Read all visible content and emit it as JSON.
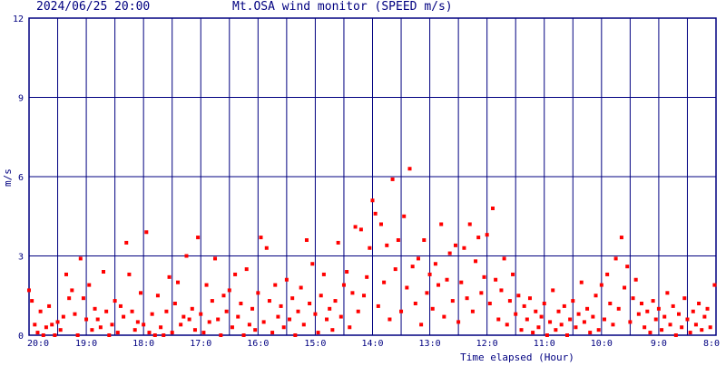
{
  "header": {
    "datetime": "2024/06/25 20:00",
    "title": "Mt.OSA wind monitor (SPEED m/s)"
  },
  "chart_data": {
    "type": "scatter",
    "title": "Mt.OSA wind monitor (SPEED m/s)",
    "xlabel": "Time elapsed (Hour)",
    "ylabel": "m/s",
    "ylim": [
      0,
      12
    ],
    "yticks": [
      "0",
      "3",
      "6",
      "9",
      "12"
    ],
    "xlim": [
      0,
      24
    ],
    "xticks": [
      "20:0",
      "19:0",
      "18:0",
      "17:0",
      "16:0",
      "15:0",
      "14:0",
      "13:0",
      "12:0",
      "11:0",
      "10:0",
      "9:0",
      "8:0"
    ],
    "grid": true,
    "colors": {
      "points": "#ff0000",
      "grid": "#000080",
      "frame": "#000080"
    },
    "series": [
      {
        "values": [
          [
            0.0,
            1.7
          ],
          [
            0.1,
            1.3
          ],
          [
            0.2,
            0.4
          ],
          [
            0.3,
            0.1
          ],
          [
            0.4,
            0.9
          ],
          [
            0.5,
            0.0
          ],
          [
            0.6,
            0.3
          ],
          [
            0.7,
            1.1
          ],
          [
            0.8,
            0.4
          ],
          [
            0.9,
            0.0
          ],
          [
            1.0,
            0.5
          ],
          [
            1.1,
            0.2
          ],
          [
            1.2,
            0.7
          ],
          [
            1.3,
            2.3
          ],
          [
            1.4,
            1.4
          ],
          [
            1.5,
            1.7
          ],
          [
            1.6,
            0.8
          ],
          [
            1.7,
            0.0
          ],
          [
            1.8,
            2.9
          ],
          [
            1.9,
            1.4
          ],
          [
            2.0,
            0.6
          ],
          [
            2.1,
            1.9
          ],
          [
            2.2,
            0.2
          ],
          [
            2.3,
            1.0
          ],
          [
            2.4,
            0.6
          ],
          [
            2.5,
            0.3
          ],
          [
            2.6,
            2.4
          ],
          [
            2.7,
            0.9
          ],
          [
            2.8,
            0.0
          ],
          [
            2.9,
            0.4
          ],
          [
            3.0,
            1.3
          ],
          [
            3.1,
            0.1
          ],
          [
            3.2,
            1.1
          ],
          [
            3.3,
            0.7
          ],
          [
            3.4,
            3.5
          ],
          [
            3.5,
            2.3
          ],
          [
            3.6,
            0.9
          ],
          [
            3.7,
            0.2
          ],
          [
            3.8,
            0.5
          ],
          [
            3.9,
            1.6
          ],
          [
            4.0,
            0.4
          ],
          [
            4.1,
            3.9
          ],
          [
            4.2,
            0.1
          ],
          [
            4.3,
            0.8
          ],
          [
            4.4,
            0.0
          ],
          [
            4.5,
            1.5
          ],
          [
            4.6,
            0.3
          ],
          [
            4.7,
            0.0
          ],
          [
            4.8,
            0.9
          ],
          [
            4.9,
            2.2
          ],
          [
            5.0,
            0.1
          ],
          [
            5.1,
            1.2
          ],
          [
            5.2,
            2.0
          ],
          [
            5.3,
            0.4
          ],
          [
            5.4,
            0.7
          ],
          [
            5.5,
            3.0
          ],
          [
            5.6,
            0.6
          ],
          [
            5.7,
            1.0
          ],
          [
            5.8,
            0.2
          ],
          [
            5.9,
            3.7
          ],
          [
            6.0,
            0.8
          ],
          [
            6.1,
            0.1
          ],
          [
            6.2,
            1.9
          ],
          [
            6.3,
            0.5
          ],
          [
            6.4,
            1.3
          ],
          [
            6.5,
            2.9
          ],
          [
            6.6,
            0.6
          ],
          [
            6.7,
            0.0
          ],
          [
            6.8,
            1.5
          ],
          [
            6.9,
            0.9
          ],
          [
            7.0,
            1.7
          ],
          [
            7.1,
            0.3
          ],
          [
            7.2,
            2.3
          ],
          [
            7.3,
            0.7
          ],
          [
            7.4,
            1.2
          ],
          [
            7.5,
            0.0
          ],
          [
            7.6,
            2.5
          ],
          [
            7.7,
            0.4
          ],
          [
            7.8,
            1.0
          ],
          [
            7.9,
            0.2
          ],
          [
            8.0,
            1.6
          ],
          [
            8.1,
            3.7
          ],
          [
            8.2,
            0.5
          ],
          [
            8.3,
            3.3
          ],
          [
            8.4,
            1.3
          ],
          [
            8.5,
            0.1
          ],
          [
            8.6,
            1.9
          ],
          [
            8.7,
            0.7
          ],
          [
            8.8,
            1.1
          ],
          [
            8.9,
            0.3
          ],
          [
            9.0,
            2.1
          ],
          [
            9.1,
            0.6
          ],
          [
            9.2,
            1.4
          ],
          [
            9.3,
            0.0
          ],
          [
            9.4,
            0.9
          ],
          [
            9.5,
            1.8
          ],
          [
            9.6,
            0.4
          ],
          [
            9.7,
            3.6
          ],
          [
            9.8,
            1.2
          ],
          [
            9.9,
            2.7
          ],
          [
            10.0,
            0.8
          ],
          [
            10.1,
            0.1
          ],
          [
            10.2,
            1.5
          ],
          [
            10.3,
            2.3
          ],
          [
            10.4,
            0.6
          ],
          [
            10.5,
            1.0
          ],
          [
            10.6,
            0.2
          ],
          [
            10.7,
            1.3
          ],
          [
            10.8,
            3.5
          ],
          [
            10.9,
            0.7
          ],
          [
            11.0,
            1.9
          ],
          [
            11.1,
            2.4
          ],
          [
            11.2,
            0.3
          ],
          [
            11.3,
            1.6
          ],
          [
            11.4,
            4.1
          ],
          [
            11.5,
            0.9
          ],
          [
            11.6,
            4.0
          ],
          [
            11.7,
            1.5
          ],
          [
            11.8,
            2.2
          ],
          [
            11.9,
            3.3
          ],
          [
            12.0,
            5.1
          ],
          [
            12.1,
            4.6
          ],
          [
            12.2,
            1.1
          ],
          [
            12.3,
            4.2
          ],
          [
            12.4,
            2.0
          ],
          [
            12.5,
            3.4
          ],
          [
            12.6,
            0.6
          ],
          [
            12.7,
            5.9
          ],
          [
            12.8,
            2.5
          ],
          [
            12.9,
            3.6
          ],
          [
            13.0,
            0.9
          ],
          [
            13.1,
            4.5
          ],
          [
            13.2,
            1.8
          ],
          [
            13.3,
            6.3
          ],
          [
            13.4,
            2.6
          ],
          [
            13.5,
            1.2
          ],
          [
            13.6,
            2.9
          ],
          [
            13.7,
            0.4
          ],
          [
            13.8,
            3.6
          ],
          [
            13.9,
            1.6
          ],
          [
            14.0,
            2.3
          ],
          [
            14.1,
            1.0
          ],
          [
            14.2,
            2.7
          ],
          [
            14.3,
            1.9
          ],
          [
            14.4,
            4.2
          ],
          [
            14.5,
            0.7
          ],
          [
            14.6,
            2.1
          ],
          [
            14.7,
            3.1
          ],
          [
            14.8,
            1.3
          ],
          [
            14.9,
            3.4
          ],
          [
            15.0,
            0.5
          ],
          [
            15.1,
            2.0
          ],
          [
            15.2,
            3.3
          ],
          [
            15.3,
            1.4
          ],
          [
            15.4,
            4.2
          ],
          [
            15.5,
            0.9
          ],
          [
            15.6,
            2.8
          ],
          [
            15.7,
            3.7
          ],
          [
            15.8,
            1.6
          ],
          [
            15.9,
            2.2
          ],
          [
            16.0,
            3.8
          ],
          [
            16.1,
            1.2
          ],
          [
            16.2,
            4.8
          ],
          [
            16.3,
            2.1
          ],
          [
            16.4,
            0.6
          ],
          [
            16.5,
            1.7
          ],
          [
            16.6,
            2.9
          ],
          [
            16.7,
            0.4
          ],
          [
            16.8,
            1.3
          ],
          [
            16.9,
            2.3
          ],
          [
            17.0,
            0.8
          ],
          [
            17.1,
            1.5
          ],
          [
            17.2,
            0.2
          ],
          [
            17.3,
            1.1
          ],
          [
            17.4,
            0.6
          ],
          [
            17.5,
            1.4
          ],
          [
            17.6,
            0.1
          ],
          [
            17.7,
            0.9
          ],
          [
            17.8,
            0.3
          ],
          [
            17.9,
            0.7
          ],
          [
            18.0,
            1.2
          ],
          [
            18.1,
            0.0
          ],
          [
            18.2,
            0.5
          ],
          [
            18.3,
            1.7
          ],
          [
            18.4,
            0.2
          ],
          [
            18.5,
            0.9
          ],
          [
            18.6,
            0.4
          ],
          [
            18.7,
            1.1
          ],
          [
            18.8,
            0.0
          ],
          [
            18.9,
            0.6
          ],
          [
            19.0,
            1.3
          ],
          [
            19.1,
            0.3
          ],
          [
            19.2,
            0.8
          ],
          [
            19.3,
            2.0
          ],
          [
            19.4,
            0.5
          ],
          [
            19.5,
            1.0
          ],
          [
            19.6,
            0.1
          ],
          [
            19.7,
            0.7
          ],
          [
            19.8,
            1.5
          ],
          [
            19.9,
            0.2
          ],
          [
            20.0,
            1.9
          ],
          [
            20.1,
            0.6
          ],
          [
            20.2,
            2.3
          ],
          [
            20.3,
            1.2
          ],
          [
            20.4,
            0.4
          ],
          [
            20.5,
            2.9
          ],
          [
            20.6,
            1.0
          ],
          [
            20.7,
            3.7
          ],
          [
            20.8,
            1.8
          ],
          [
            20.9,
            2.6
          ],
          [
            21.0,
            0.5
          ],
          [
            21.1,
            1.4
          ],
          [
            21.2,
            2.1
          ],
          [
            21.3,
            0.8
          ],
          [
            21.4,
            1.2
          ],
          [
            21.5,
            0.3
          ],
          [
            21.6,
            0.9
          ],
          [
            21.7,
            0.1
          ],
          [
            21.8,
            1.3
          ],
          [
            21.9,
            0.6
          ],
          [
            22.0,
            1.0
          ],
          [
            22.1,
            0.2
          ],
          [
            22.2,
            0.7
          ],
          [
            22.3,
            1.6
          ],
          [
            22.4,
            0.4
          ],
          [
            22.5,
            1.1
          ],
          [
            22.6,
            0.0
          ],
          [
            22.7,
            0.8
          ],
          [
            22.8,
            0.3
          ],
          [
            22.9,
            1.4
          ],
          [
            23.0,
            0.6
          ],
          [
            23.1,
            0.1
          ],
          [
            23.2,
            0.9
          ],
          [
            23.3,
            0.4
          ],
          [
            23.4,
            1.2
          ],
          [
            23.5,
            0.2
          ],
          [
            23.6,
            0.7
          ],
          [
            23.7,
            1.0
          ],
          [
            23.8,
            0.3
          ],
          [
            23.95,
            1.9
          ]
        ]
      }
    ]
  }
}
